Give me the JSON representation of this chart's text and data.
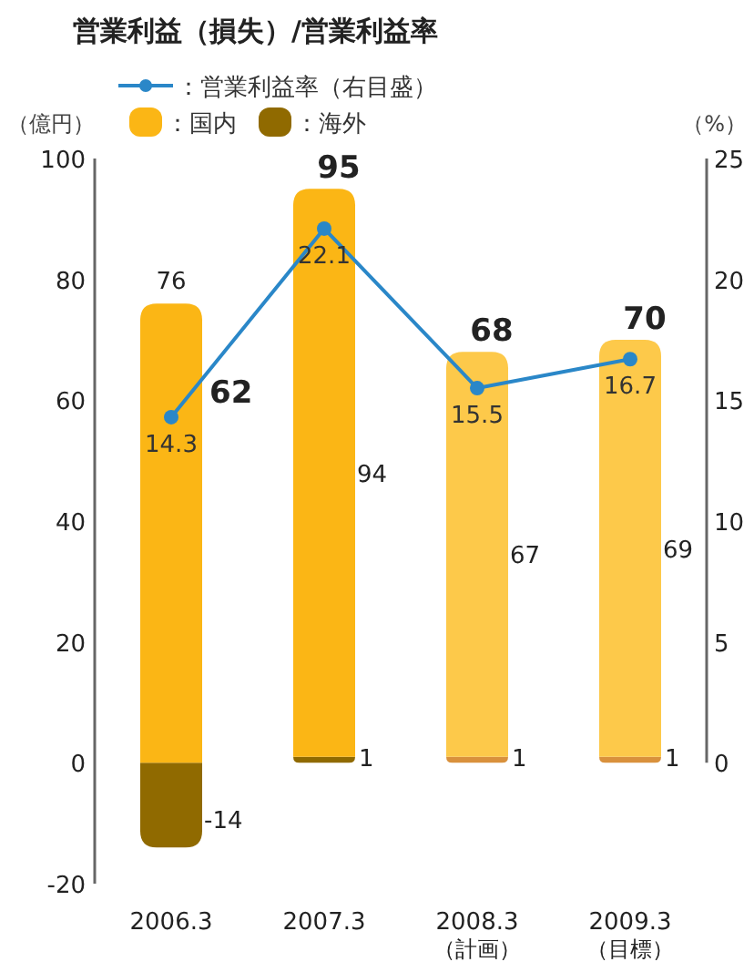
{
  "chart_data": {
    "type": "bar",
    "stacked": true,
    "title": "営業利益（損失）/営業利益率",
    "ylabel": "（億円）",
    "y2label": "（%）",
    "categories": [
      "2006.3",
      "2007.3",
      "2008.3\n（計画）",
      "2009.3\n（目標）"
    ],
    "series": [
      {
        "name": "：海外",
        "colors": [
          "#906a00",
          "#906a00",
          "#d9913c",
          "#d9913c"
        ],
        "values": [
          -14,
          1,
          1,
          1
        ],
        "value_labels": [
          "-14",
          "1",
          "1",
          "1"
        ]
      },
      {
        "name": "：国内",
        "colors": [
          "#fbb615",
          "#fbb615",
          "#fdc94a",
          "#fdc94a"
        ],
        "values": [
          76,
          94,
          67,
          69
        ],
        "value_labels": [
          "76",
          "94",
          "67",
          "69"
        ]
      },
      {
        "name": "：営業利益率（右目盛）",
        "type": "line",
        "axis": "y2",
        "color": "#2a87c8",
        "marker": "circle",
        "values": [
          14.3,
          22.1,
          15.5,
          16.7
        ],
        "value_labels": [
          "14.3",
          "22.1",
          "15.5",
          "16.7"
        ]
      }
    ],
    "totals": [
      "62",
      "95",
      "68",
      "70"
    ],
    "ylim": [
      -20,
      100
    ],
    "yticks": [
      -20,
      0,
      20,
      40,
      60,
      80,
      100
    ],
    "y2lim": [
      0,
      25
    ],
    "y2ticks": [
      0,
      5,
      10,
      15,
      20,
      25
    ],
    "legend": "top left",
    "grid": false
  }
}
